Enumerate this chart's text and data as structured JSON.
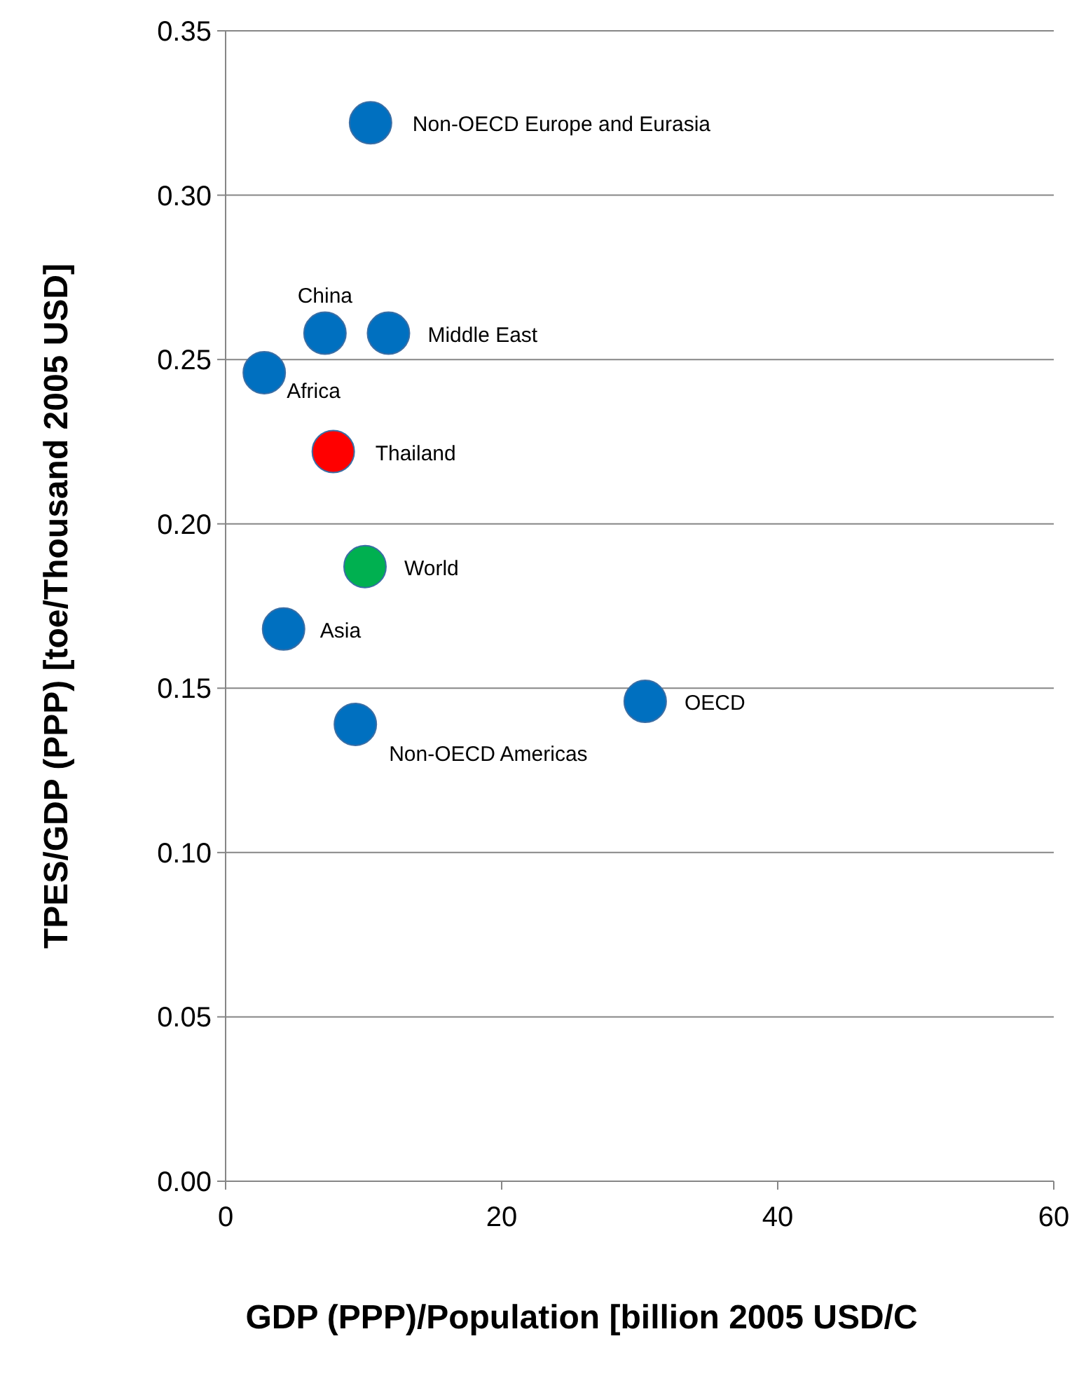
{
  "chart_data": {
    "type": "scatter",
    "xlabel": "GDP (PPP)/Population [billion 2005 USD/C",
    "ylabel": "TPES/GDP (PPP) [toe/Thousand 2005 USD]",
    "x": [
      10.5,
      7.2,
      11.8,
      2.8,
      7.8,
      10.1,
      4.2,
      9.4,
      30.4
    ],
    "values": [
      0.322,
      0.258,
      0.258,
      0.246,
      0.222,
      0.187,
      0.168,
      0.139,
      0.146
    ],
    "colors": [
      "#0070c0",
      "#0070c0",
      "#0070c0",
      "#0070c0",
      "#ff0000",
      "#00b050",
      "#0070c0",
      "#0070c0",
      "#0070c0"
    ],
    "annotations": [
      {
        "text": "Non-OECD Europe and Eurasia",
        "x": 10.5,
        "y": 0.322
      },
      {
        "text": "China",
        "x": 7.2,
        "y": 0.258
      },
      {
        "text": "Middle East",
        "x": 11.8,
        "y": 0.258
      },
      {
        "text": "Africa",
        "x": 2.8,
        "y": 0.246
      },
      {
        "text": "Thailand",
        "x": 7.8,
        "y": 0.222
      },
      {
        "text": "World",
        "x": 10.1,
        "y": 0.187
      },
      {
        "text": "Asia",
        "x": 4.2,
        "y": 0.168
      },
      {
        "text": "Non-OECD Americas",
        "x": 9.4,
        "y": 0.139
      },
      {
        "text": "OECD",
        "x": 30.4,
        "y": 0.146
      }
    ],
    "xlim": [
      0,
      60
    ],
    "xticks": [
      0,
      20,
      40,
      60
    ],
    "ylim": [
      0,
      0.35
    ],
    "yticks": [
      {
        "value": 0,
        "label": "0.00"
      },
      {
        "value": 0.05,
        "label": "0.05"
      },
      {
        "value": 0.1,
        "label": "0.10"
      },
      {
        "value": 0.15,
        "label": "0.15"
      },
      {
        "value": 0.2,
        "label": "0.20"
      },
      {
        "value": 0.25,
        "label": "0.25"
      },
      {
        "value": 0.3,
        "label": "0.30"
      },
      {
        "value": 0.35,
        "label": "0.35"
      }
    ],
    "grid": "y",
    "marker": "circle"
  }
}
